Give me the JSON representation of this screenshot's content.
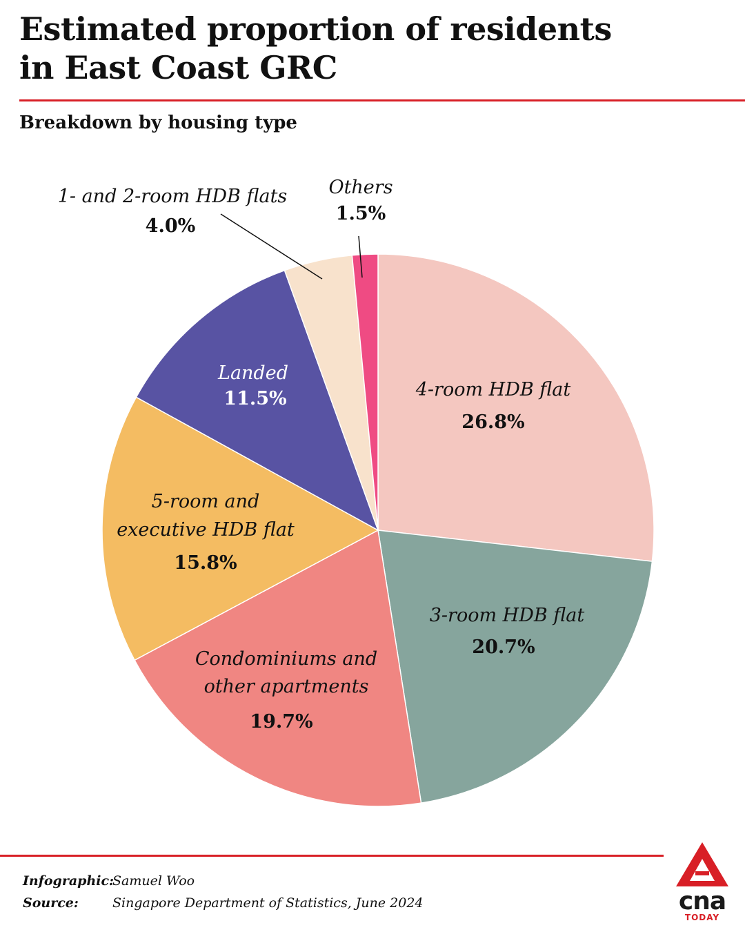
{
  "header": {
    "title_line1": "Estimated proportion of residents",
    "title_line2": "in East Coast GRC",
    "subtitle": "Breakdown by housing type"
  },
  "colors": {
    "accent": "#d81f26",
    "text": "#111111",
    "slice_stroke": "#ffffff"
  },
  "chart_data": {
    "type": "pie",
    "title": "Estimated proportion of residents in East Coast GRC",
    "subtitle": "Breakdown by housing type",
    "unit": "%",
    "start_angle_deg": 0,
    "direction": "clockwise",
    "slices": [
      {
        "label": "4-room HDB flat",
        "value": 26.8,
        "display": "26.8%",
        "color": "#f4c7c0",
        "label_color": "#111111"
      },
      {
        "label": "3-room HDB flat",
        "value": 20.7,
        "display": "20.7%",
        "color": "#86a59d",
        "label_color": "#111111"
      },
      {
        "label": "Condominiums and other apartments",
        "value": 19.7,
        "display": "19.7%",
        "color": "#f08682",
        "label_color": "#111111"
      },
      {
        "label": "5-room and executive HDB flat",
        "value": 15.8,
        "display": "15.8%",
        "color": "#f4bc62",
        "label_color": "#111111"
      },
      {
        "label": "Landed",
        "value": 11.5,
        "display": "11.5%",
        "color": "#5853a3",
        "label_color": "#ffffff"
      },
      {
        "label": "1- and 2-room HDB flats",
        "value": 4.0,
        "display": "4.0%",
        "color": "#f8e2cc",
        "label_color": "#111111"
      },
      {
        "label": "Others",
        "value": 1.5,
        "display": "1.5%",
        "color": "#ef4b83",
        "label_color": "#111111"
      }
    ]
  },
  "footer": {
    "infographic_label": "Infographic:",
    "infographic_value": "Samuel Woo",
    "source_label": "Source:",
    "source_value": "Singapore Department of Statistics, June 2024"
  },
  "logo": {
    "word": "cna",
    "sub": "TODAY"
  }
}
